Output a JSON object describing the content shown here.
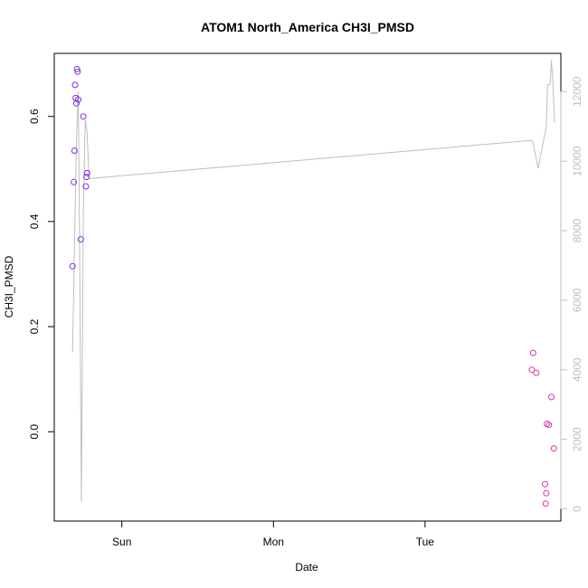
{
  "chart_data": {
    "type": "scatter",
    "title": "ATOM1 North_America CH3I_PMSD",
    "xlabel": "Date",
    "ylabel": "CH3I_PMSD",
    "x_ticks": [
      {
        "label": "Sun",
        "hours": 24
      },
      {
        "label": "Mon",
        "hours": 48
      },
      {
        "label": "Tue",
        "hours": 72
      }
    ],
    "xlim_hours": [
      13.3,
      93.5
    ],
    "ylim_left": [
      -0.17,
      0.72
    ],
    "yticks_left": [
      "0.0",
      "0.2",
      "0.4",
      "0.6"
    ],
    "ylim_right": [
      -350,
      13100
    ],
    "yticks_right": [
      "0",
      "2000",
      "4000",
      "6000",
      "8000",
      "10000",
      "12000"
    ],
    "series": [
      {
        "color": "#7f2fe0",
        "points": [
          {
            "hours": 16.2,
            "value": 0.315
          },
          {
            "hours": 16.4,
            "value": 0.475
          },
          {
            "hours": 16.5,
            "value": 0.535
          },
          {
            "hours": 16.6,
            "value": 0.66
          },
          {
            "hours": 16.7,
            "value": 0.635
          },
          {
            "hours": 16.8,
            "value": 0.625
          },
          {
            "hours": 16.9,
            "value": 0.69
          },
          {
            "hours": 17.0,
            "value": 0.685
          },
          {
            "hours": 17.1,
            "value": 0.632
          },
          {
            "hours": 17.5,
            "value": 0.366
          },
          {
            "hours": 17.9,
            "value": 0.6
          },
          {
            "hours": 18.3,
            "value": 0.467
          },
          {
            "hours": 18.4,
            "value": 0.485
          },
          {
            "hours": 18.5,
            "value": 0.492
          }
        ]
      },
      {
        "color": "#e030b0",
        "points": [
          {
            "hours": 88.9,
            "value": 0.118
          },
          {
            "hours": 89.1,
            "value": 0.15
          },
          {
            "hours": 89.6,
            "value": 0.112
          },
          {
            "hours": 91.0,
            "value": -0.1
          },
          {
            "hours": 91.1,
            "value": -0.137
          },
          {
            "hours": 91.2,
            "value": -0.117
          },
          {
            "hours": 91.3,
            "value": 0.015
          },
          {
            "hours": 91.6,
            "value": 0.013
          },
          {
            "hours": 92.0,
            "value": 0.066
          },
          {
            "hours": 92.4,
            "value": -0.032
          }
        ]
      }
    ],
    "secondary_line": {
      "color": "#bebebe",
      "axis": "right",
      "points": [
        {
          "hours": 16.2,
          "value": 4500
        },
        {
          "hours": 16.5,
          "value": 7500
        },
        {
          "hours": 16.8,
          "value": 10500
        },
        {
          "hours": 17.1,
          "value": 12000
        },
        {
          "hours": 17.3,
          "value": 8000
        },
        {
          "hours": 17.6,
          "value": 200
        },
        {
          "hours": 17.9,
          "value": 8500
        },
        {
          "hours": 18.2,
          "value": 11200
        },
        {
          "hours": 18.5,
          "value": 10800
        },
        {
          "hours": 18.8,
          "value": 9500
        },
        {
          "hours": 89.0,
          "value": 10600
        },
        {
          "hours": 89.9,
          "value": 9800
        },
        {
          "hours": 91.2,
          "value": 11000
        },
        {
          "hours": 91.4,
          "value": 12200
        },
        {
          "hours": 91.8,
          "value": 12200
        },
        {
          "hours": 92.0,
          "value": 12900
        },
        {
          "hours": 92.2,
          "value": 12400
        },
        {
          "hours": 92.5,
          "value": 11100
        }
      ]
    }
  }
}
